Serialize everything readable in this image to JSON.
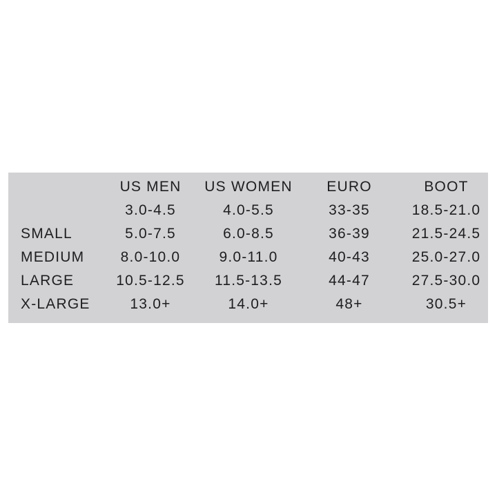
{
  "colors": {
    "page_background": "#ffffff",
    "panel_background": "#d2d2d4",
    "text": "#1e1e20"
  },
  "chart_data": {
    "type": "table",
    "title": "",
    "columns": [
      "",
      "US MEN",
      "US WOMEN",
      "EURO",
      "BOOT"
    ],
    "rows": [
      [
        "",
        "3.0-4.5",
        "4.0-5.5",
        "33-35",
        "18.5-21.0"
      ],
      [
        "SMALL",
        "5.0-7.5",
        "6.0-8.5",
        "36-39",
        "21.5-24.5"
      ],
      [
        "MEDIUM",
        "8.0-10.0",
        "9.0-11.0",
        "40-43",
        "25.0-27.0"
      ],
      [
        "LARGE",
        "10.5-12.5",
        "11.5-13.5",
        "44-47",
        "27.5-30.0"
      ],
      [
        "X-LARGE",
        "13.0+",
        "14.0+",
        "48+",
        "30.5+"
      ]
    ]
  }
}
